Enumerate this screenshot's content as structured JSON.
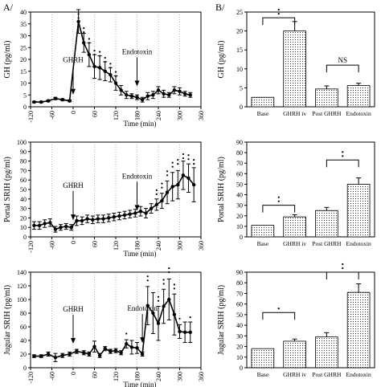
{
  "panel_labels": {
    "a": "A/",
    "b": "B/"
  },
  "chart_data": [
    {
      "id": "A1",
      "type": "line",
      "ylabel": "GH (pg/ml)",
      "xlabel": "Time (min)",
      "xlim": [
        -120,
        360
      ],
      "ylim": [
        0,
        40
      ],
      "xticks": [
        -120,
        -60,
        0,
        60,
        120,
        180,
        240,
        300,
        360
      ],
      "yticks": [
        0,
        5,
        10,
        15,
        20,
        25,
        30,
        35,
        40
      ],
      "x": [
        -110,
        -90,
        -70,
        -50,
        -30,
        -10,
        15,
        30,
        45,
        60,
        75,
        90,
        105,
        120,
        135,
        150,
        165,
        180,
        195,
        210,
        225,
        240,
        255,
        270,
        285,
        300,
        315,
        330
      ],
      "y": [
        2,
        2,
        2.5,
        3.5,
        3,
        2.5,
        36,
        27,
        22,
        17,
        16.5,
        15,
        13.5,
        10,
        7,
        5,
        4.5,
        4,
        3,
        4.5,
        5,
        7,
        5.5,
        5,
        7,
        6.5,
        5.5,
        5
      ],
      "err": [
        0.3,
        0.3,
        0.4,
        0.5,
        0.4,
        0.4,
        5,
        4,
        5,
        5,
        5,
        4,
        3,
        3,
        2,
        1.5,
        1,
        1,
        1,
        1.5,
        1.5,
        1.5,
        1.5,
        1,
        1.5,
        1.5,
        1,
        1
      ],
      "annotations": [
        {
          "label": "GHRH",
          "x": 0,
          "y": 4.5
        },
        {
          "label": "Endotoxin",
          "x": 180,
          "y": 8
        }
      ],
      "stars": [
        {
          "x": 15,
          "y": 37.5,
          "n": 2
        },
        {
          "x": 30,
          "y": 31.5,
          "n": 2
        },
        {
          "x": 45,
          "y": 27,
          "n": 2
        },
        {
          "x": 60,
          "y": 22,
          "n": 2
        },
        {
          "x": 75,
          "y": 21.5,
          "n": 2
        },
        {
          "x": 90,
          "y": 19,
          "n": 2
        },
        {
          "x": 105,
          "y": 16.5,
          "n": 2
        },
        {
          "x": 120,
          "y": 13,
          "n": 2
        }
      ]
    },
    {
      "id": "A2",
      "type": "line",
      "ylabel": "Portal SRIH (pg/ml)",
      "xlabel": "Time (min)",
      "xlim": [
        -120,
        360
      ],
      "ylim": [
        0,
        100
      ],
      "xticks": [
        -120,
        -60,
        0,
        60,
        120,
        180,
        240,
        300,
        360
      ],
      "yticks": [
        0,
        10,
        20,
        30,
        40,
        50,
        60,
        70,
        80,
        90,
        100
      ],
      "x": [
        -110,
        -95,
        -80,
        -65,
        -50,
        -35,
        -20,
        -5,
        10,
        25,
        40,
        55,
        70,
        85,
        100,
        115,
        130,
        145,
        160,
        175,
        190,
        205,
        220,
        235,
        250,
        265,
        280,
        295,
        310,
        325,
        340
      ],
      "y": [
        12,
        12,
        14,
        15,
        8,
        10,
        11,
        10,
        17,
        17,
        19,
        18,
        19,
        19,
        20,
        21,
        22,
        23,
        24,
        25,
        27,
        25,
        30,
        34,
        38,
        47,
        53,
        55,
        65,
        62,
        55
      ],
      "err": [
        4,
        4,
        4,
        4,
        3,
        3,
        3,
        3,
        5,
        4,
        4,
        4,
        4,
        4,
        4,
        4,
        4,
        4,
        4,
        4,
        5,
        5,
        5,
        6,
        8,
        12,
        15,
        15,
        15,
        15,
        18
      ],
      "annotations": [
        {
          "label": "GHRH",
          "x": 0,
          "y": 16
        },
        {
          "label": "Endotoxin",
          "x": 180,
          "y": 26
        }
      ],
      "stars": [
        {
          "x": 235,
          "y": 45,
          "n": 2
        },
        {
          "x": 250,
          "y": 52,
          "n": 2
        },
        {
          "x": 265,
          "y": 65,
          "n": 2
        },
        {
          "x": 280,
          "y": 74,
          "n": 2
        },
        {
          "x": 295,
          "y": 77,
          "n": 2
        },
        {
          "x": 310,
          "y": 83,
          "n": 2
        },
        {
          "x": 325,
          "y": 82,
          "n": 2
        },
        {
          "x": 340,
          "y": 77,
          "n": 2
        }
      ]
    },
    {
      "id": "A3",
      "type": "line",
      "ylabel": "Jugular SRIH (pg/ml)",
      "xlabel": "Time (min)",
      "xlim": [
        -120,
        360
      ],
      "ylim": [
        0,
        140
      ],
      "xticks": [
        -120,
        -60,
        0,
        60,
        120,
        180,
        240,
        300,
        360
      ],
      "yticks": [
        0,
        20,
        40,
        60,
        80,
        100,
        120,
        140
      ],
      "x": [
        -110,
        -90,
        -70,
        -50,
        -30,
        -10,
        10,
        30,
        45,
        60,
        75,
        90,
        105,
        120,
        135,
        150,
        165,
        180,
        195,
        210,
        225,
        240,
        255,
        270,
        285,
        300,
        315,
        330
      ],
      "y": [
        17,
        17,
        20,
        15,
        18,
        20,
        24,
        22,
        20,
        31,
        18,
        28,
        24,
        25,
        22,
        35,
        30,
        29,
        20,
        91,
        80,
        65,
        90,
        100,
        78,
        53,
        52,
        52
      ],
      "err": [
        2,
        2,
        3,
        6,
        3,
        3,
        3,
        3,
        3,
        8,
        3,
        3,
        3,
        3,
        3,
        6,
        10,
        8,
        3,
        28,
        30,
        25,
        25,
        30,
        30,
        10,
        15,
        15
      ],
      "annotations": [
        {
          "label": "GHRH",
          "x": 0,
          "y": 33
        },
        {
          "label": "Endotoxin",
          "x": 195,
          "y": 34
        }
      ],
      "stars": [
        {
          "x": 150,
          "y": 50,
          "n": 1
        },
        {
          "x": 210,
          "y": 128,
          "n": 2
        },
        {
          "x": 240,
          "y": 98,
          "n": 2
        },
        {
          "x": 255,
          "y": 123,
          "n": 2
        },
        {
          "x": 270,
          "y": 140,
          "n": 2
        },
        {
          "x": 285,
          "y": 116,
          "n": 2
        },
        {
          "x": 300,
          "y": 72,
          "n": 1
        },
        {
          "x": 330,
          "y": 74,
          "n": 1
        }
      ]
    },
    {
      "id": "B1",
      "type": "bar",
      "ylabel": "GH (pg/ml)",
      "categories": [
        "Base",
        "GHRH iv",
        "Post GHRH",
        "Endotoxin"
      ],
      "values": [
        2.5,
        20,
        4.7,
        5.6
      ],
      "err": [
        0,
        2.5,
        0.8,
        0.6
      ],
      "ylim": [
        0,
        25
      ],
      "yticks": [
        0,
        5,
        10,
        15,
        20,
        25
      ],
      "brackets": [
        {
          "from": 0,
          "to": 1,
          "label": "**",
          "y": 23.5
        },
        {
          "from": 2,
          "to": 3,
          "label": "NS",
          "y": 11
        }
      ]
    },
    {
      "id": "B2",
      "type": "bar",
      "ylabel": "Portal SRIH (pg/ml)",
      "categories": [
        "Base",
        "GHRH iv",
        "Post GHRH",
        "Endotoxin"
      ],
      "values": [
        11,
        19,
        25,
        50
      ],
      "err": [
        0,
        2,
        3,
        6
      ],
      "ylim": [
        0,
        90
      ],
      "yticks": [
        0,
        10,
        20,
        30,
        40,
        50,
        60,
        70,
        80,
        90
      ],
      "brackets": [
        {
          "from": 0,
          "to": 1,
          "label": "**",
          "y": 30
        },
        {
          "from": 2,
          "to": 3,
          "label": "**",
          "y": 73
        }
      ]
    },
    {
      "id": "B3",
      "type": "bar",
      "ylabel": "Jugular SRIH (pg/ml)",
      "categories": [
        "Base",
        "GHRH iv",
        "Post GHRH",
        "Endotoxin"
      ],
      "values": [
        18,
        25,
        29,
        71
      ],
      "err": [
        0,
        2,
        4,
        8
      ],
      "ylim": [
        0,
        90
      ],
      "yticks": [
        0,
        10,
        20,
        30,
        40,
        50,
        60,
        70,
        80,
        90
      ],
      "brackets": [
        {
          "from": 0,
          "to": 1,
          "label": "*",
          "y": 52
        },
        {
          "from": 2,
          "to": 3,
          "label": "**",
          "y": 90
        }
      ]
    }
  ]
}
